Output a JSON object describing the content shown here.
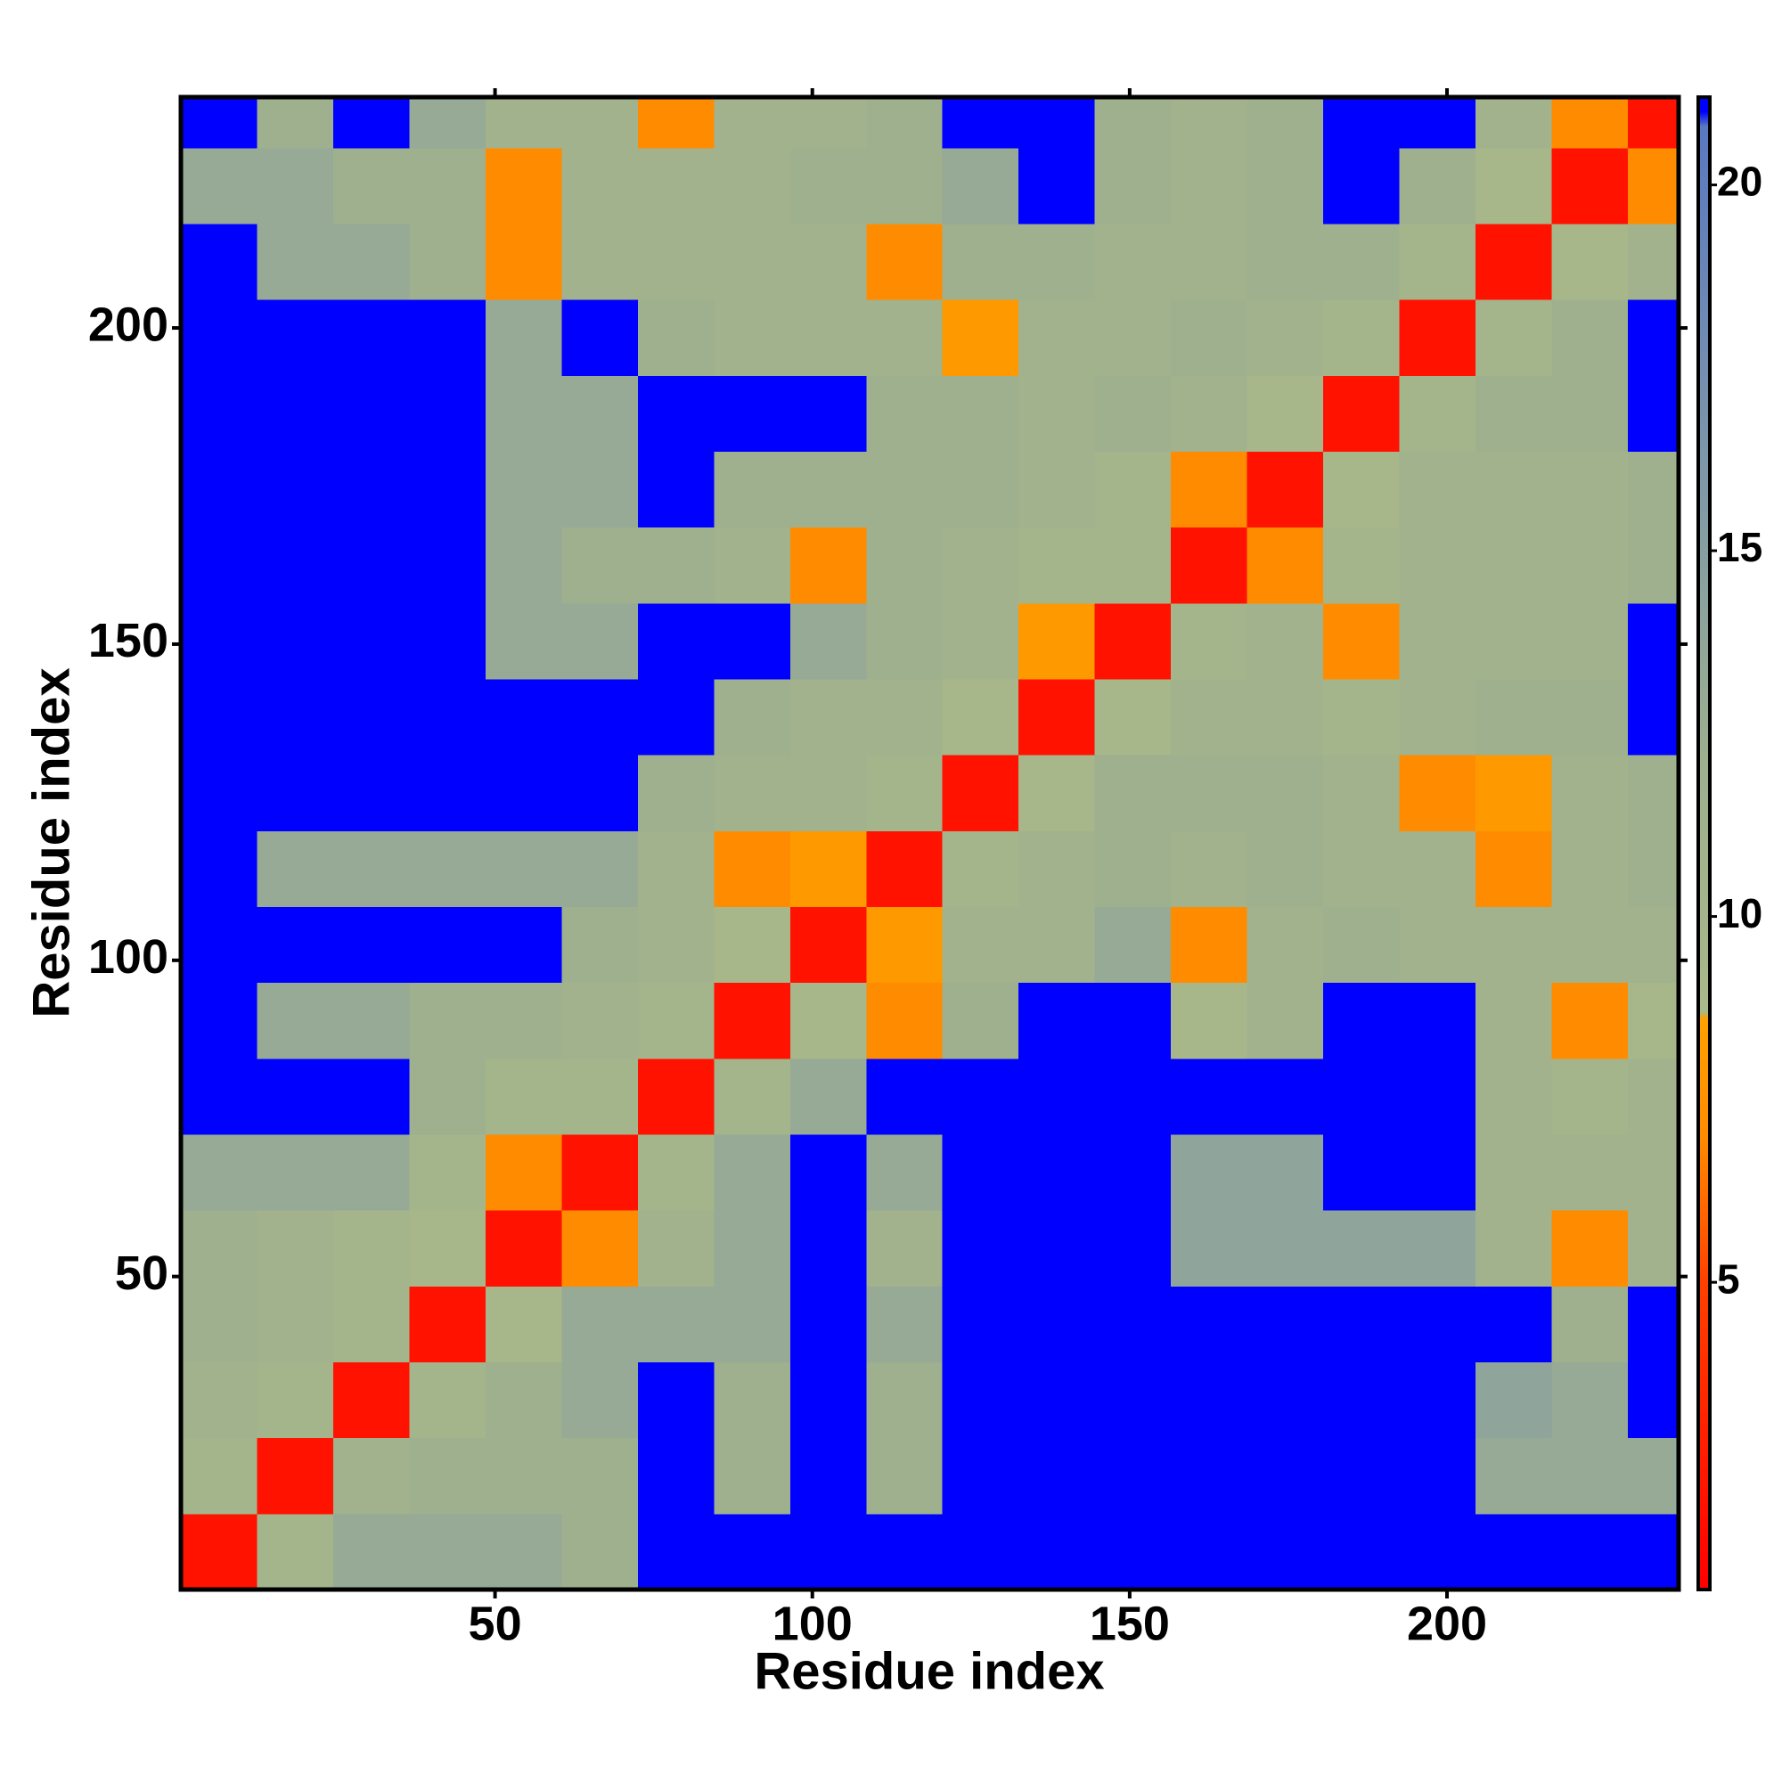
{
  "chart_data": {
    "type": "heatmap",
    "xlabel": "Residue index",
    "ylabel": "Residue index",
    "bins": [
      0.5,
      12.5,
      24.5,
      36.5,
      48.5,
      60.5,
      72.5,
      84.5,
      96.5,
      108.5,
      120.5,
      132.5,
      144.5,
      156.5,
      168.5,
      180.5,
      192.5,
      204.5,
      216.5,
      228.5,
      236.5
    ],
    "values": [
      [
        2,
        10,
        13,
        13,
        13,
        12,
        22,
        22,
        22,
        22,
        22,
        22,
        22,
        22,
        22,
        22,
        22,
        22,
        22,
        22
      ],
      [
        10,
        2,
        11,
        12,
        12,
        12,
        22,
        12,
        22,
        12,
        22,
        22,
        22,
        22,
        22,
        22,
        22,
        13,
        13,
        13
      ],
      [
        11,
        10,
        2,
        10,
        12,
        13,
        22,
        12,
        22,
        12,
        22,
        22,
        22,
        22,
        22,
        22,
        22,
        14,
        13,
        22
      ],
      [
        12,
        11,
        10,
        2,
        9,
        13,
        13,
        13,
        22,
        13,
        22,
        22,
        22,
        22,
        22,
        22,
        22,
        22,
        12,
        22
      ],
      [
        12,
        11,
        10,
        9,
        2,
        7,
        11,
        13,
        22,
        11,
        22,
        22,
        22,
        14,
        14,
        14,
        14,
        11,
        7,
        11
      ],
      [
        13,
        13,
        13,
        10,
        7,
        2,
        10,
        13,
        22,
        13,
        22,
        22,
        22,
        14,
        14,
        22,
        22,
        11,
        11,
        11
      ],
      [
        22,
        22,
        22,
        12,
        10,
        10,
        2,
        10,
        13,
        22,
        22,
        22,
        22,
        22,
        22,
        22,
        22,
        11,
        10,
        11
      ],
      [
        22,
        13,
        13,
        12,
        12,
        11,
        10,
        2,
        9,
        7,
        12,
        22,
        22,
        9,
        11,
        22,
        22,
        11,
        7,
        9
      ],
      [
        22,
        22,
        22,
        22,
        22,
        12,
        11,
        9,
        2,
        8,
        11,
        11,
        13,
        7,
        11,
        12,
        11,
        11,
        11,
        11
      ],
      [
        22,
        13,
        13,
        13,
        13,
        13,
        11,
        7,
        8,
        2,
        10,
        11,
        12,
        11,
        12,
        11,
        11,
        7,
        11,
        12
      ],
      [
        22,
        22,
        22,
        22,
        22,
        22,
        12,
        11,
        11,
        10,
        2,
        9,
        12,
        12,
        12,
        11,
        7,
        8,
        11,
        12
      ],
      [
        22,
        22,
        22,
        22,
        22,
        22,
        22,
        12,
        11,
        11,
        9,
        2,
        9,
        11,
        11,
        10,
        11,
        12,
        12,
        22
      ],
      [
        22,
        22,
        22,
        22,
        13,
        13,
        22,
        22,
        13,
        12,
        11,
        8,
        2,
        10,
        11,
        7,
        11,
        11,
        11,
        22
      ],
      [
        22,
        22,
        22,
        22,
        13,
        12,
        12,
        11,
        7,
        12,
        11,
        10,
        10,
        2,
        7,
        10,
        11,
        11,
        11,
        12
      ],
      [
        22,
        22,
        22,
        22,
        13,
        13,
        22,
        12,
        12,
        12,
        12,
        11,
        10,
        7,
        2,
        9,
        11,
        11,
        11,
        12
      ],
      [
        22,
        22,
        22,
        22,
        13,
        13,
        22,
        22,
        22,
        12,
        12,
        11,
        12,
        11,
        9,
        2,
        10,
        12,
        12,
        22
      ],
      [
        22,
        22,
        22,
        22,
        13,
        22,
        12,
        11,
        11,
        11,
        8,
        11,
        11,
        12,
        11,
        10,
        2,
        10,
        12,
        22
      ],
      [
        22,
        13,
        13,
        12,
        7,
        11,
        11,
        11,
        11,
        7,
        12,
        12,
        11,
        11,
        12,
        12,
        10,
        2,
        9,
        11
      ],
      [
        13,
        13,
        12,
        12,
        7,
        11,
        11,
        11,
        12,
        12,
        13,
        22,
        12,
        11,
        12,
        22,
        12,
        9,
        2,
        7
      ],
      [
        22,
        12,
        22,
        13,
        11,
        11,
        7,
        11,
        11,
        12,
        22,
        22,
        12,
        11,
        12,
        22,
        22,
        11,
        7,
        2
      ]
    ],
    "xlim": [
      0.5,
      236.5
    ],
    "ylim": [
      0.5,
      236.5
    ],
    "xticks": [
      50,
      100,
      150,
      200
    ],
    "yticks": [
      50,
      100,
      150,
      200
    ],
    "colorbar": {
      "lim": [
        0.8,
        21.2
      ],
      "ticks": [
        5,
        10,
        15,
        20
      ]
    },
    "colorscale": [
      {
        "value": 0.8,
        "color": "#ff0000"
      },
      {
        "value": 5,
        "color": "#ff4000"
      },
      {
        "value": 7,
        "color": "#ff8c00"
      },
      {
        "value": 8.6,
        "color": "#ffa000"
      },
      {
        "value": 8.7,
        "color": "#a8b88a"
      },
      {
        "value": 12,
        "color": "#9eb08e"
      },
      {
        "value": 16,
        "color": "#7f98a8"
      },
      {
        "value": 20.8,
        "color": "#5a78c0"
      },
      {
        "value": 21,
        "color": "#0000ff"
      }
    ]
  }
}
